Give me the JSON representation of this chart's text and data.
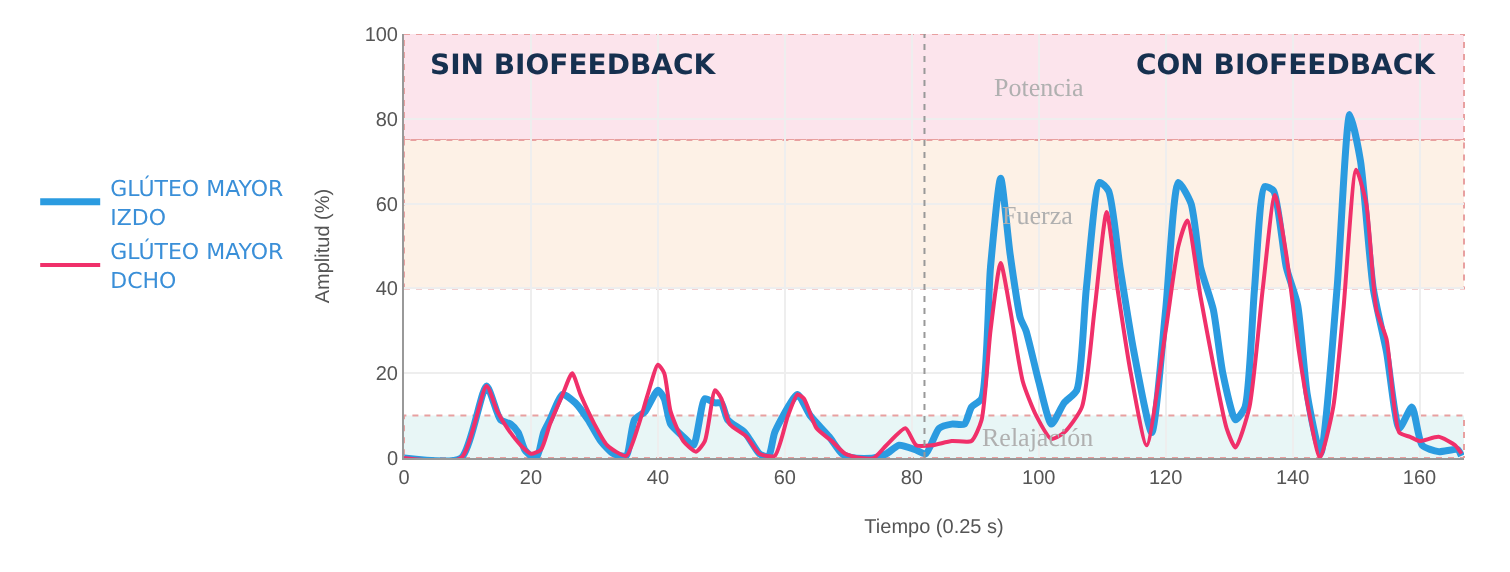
{
  "chart_data": {
    "type": "line",
    "xlabel": "Tiempo (0.25 s)",
    "ylabel": "Amplitud (%)",
    "annotations": [
      "SIN BIOFEEDBACK",
      "CON BIOFEEDBACK"
    ],
    "xlim": [
      0,
      167
    ],
    "xticks": [
      0,
      20,
      40,
      60,
      80,
      100,
      120,
      140,
      160
    ],
    "ylim": [
      0,
      100
    ],
    "yticks": [
      0,
      20,
      40,
      60,
      80,
      100
    ],
    "grid": true,
    "legend": "left",
    "marker": "none",
    "line_style": "solid",
    "bands": [
      {
        "axis": "y",
        "from": 75,
        "to": 100,
        "label": "Potencia",
        "color": "#fce4ec"
      },
      {
        "axis": "y",
        "from": 40,
        "to": 75,
        "label": "Fuerza",
        "color": "#fdf1e6"
      },
      {
        "axis": "y",
        "from": 0,
        "to": 10,
        "label": "Relajación",
        "color": "#e8f6f6"
      }
    ],
    "ref_lines": [
      {
        "axis": "x",
        "value": 82,
        "color": "#999999",
        "line_style": "dotted"
      }
    ],
    "series": [
      {
        "name": "GLÚTEO MAYOR IZDO",
        "color": "#2b9be0",
        "x": [
          0,
          9,
          13,
          15.2,
          16.8,
          18,
          19,
          20,
          21,
          22,
          23,
          25,
          27,
          29,
          31,
          33,
          35,
          36.3,
          38,
          40,
          41,
          42,
          44,
          45.6,
          47.4,
          49,
          50,
          51,
          53.7,
          56,
          57.4,
          58.4,
          60.5,
          62,
          64,
          67,
          69,
          71,
          74,
          76,
          78,
          80.5,
          82.2,
          84.3,
          86.3,
          88.3,
          89.4,
          91,
          92.4,
          94,
          95.5,
          97.1,
          98,
          100,
          102,
          104,
          106,
          107.5,
          109.6,
          111,
          112.8,
          115,
          117.8,
          120,
          122,
          124,
          125.5,
          127.5,
          129,
          131,
          132.5,
          134,
          135.6,
          137,
          139,
          140.8,
          142.3,
          144.4,
          147,
          149,
          150.7,
          152.7,
          154.8,
          156.8,
          158.8,
          160.4,
          163,
          166,
          166.6
        ],
        "values": [
          0,
          0,
          17,
          9,
          8,
          6,
          2,
          0.5,
          0.5,
          6,
          9,
          15,
          13,
          9,
          4,
          1,
          0.5,
          9,
          11,
          16,
          14,
          8,
          5,
          3,
          14,
          13,
          13,
          9,
          6,
          1,
          0.3,
          6,
          12,
          15,
          10,
          5,
          1,
          0,
          0,
          1,
          3,
          2,
          1,
          7,
          8,
          8,
          12,
          14,
          45,
          66,
          48,
          33,
          30,
          18,
          8,
          13,
          16,
          40,
          65,
          63,
          45,
          25,
          6,
          35,
          65,
          60,
          45,
          35,
          20,
          9,
          12,
          40,
          64,
          63,
          45,
          36,
          15,
          1,
          40,
          81,
          70,
          40,
          25,
          7,
          12,
          3,
          1.5,
          2,
          0.5
        ]
      },
      {
        "name": "GLÚTEO MAYOR DCHO",
        "color": "#f0306a",
        "x": [
          0,
          9,
          13,
          14.7,
          16.3,
          18.4,
          20,
          21.6,
          23,
          25,
          26.5,
          27.8,
          30,
          32,
          35,
          37,
          38.4,
          40,
          41,
          42,
          44,
          46,
          47.4,
          49,
          50,
          51.3,
          54,
          56,
          58.4,
          60.5,
          62,
          63,
          65,
          67.4,
          69.5,
          72,
          74,
          76,
          79,
          80.7,
          83.2,
          86.3,
          89.4,
          91,
          92.4,
          94,
          95.5,
          97.5,
          99.6,
          102,
          104,
          106.8,
          108.8,
          110.7,
          112.4,
          114.5,
          117,
          120,
          122,
          123.4,
          125.5,
          127.5,
          129.6,
          131,
          133.2,
          135.3,
          137.2,
          139,
          141,
          142.7,
          144.3,
          146.4,
          148,
          150,
          151.6,
          153.2,
          154.8,
          156.8,
          158.5,
          160,
          163,
          165.6,
          166.6
        ],
        "values": [
          0,
          0,
          17,
          11,
          7,
          3,
          1,
          2,
          8,
          15,
          20,
          15,
          8,
          3,
          0.5,
          8,
          15,
          22,
          20,
          11,
          4,
          1.5,
          4,
          16,
          14,
          8,
          5,
          1,
          0.5,
          10,
          15,
          14,
          7,
          4,
          1,
          0,
          0,
          3,
          7,
          3,
          3,
          4,
          4,
          9,
          30,
          46,
          35,
          18,
          10,
          4.5,
          6,
          12,
          35,
          58,
          40,
          20,
          3,
          30,
          50,
          56,
          38,
          22,
          7,
          2.5,
          12,
          40,
          62,
          48,
          25,
          10,
          0,
          12,
          35,
          68,
          60,
          35,
          28,
          6,
          5,
          4,
          5,
          3,
          1
        ]
      }
    ]
  }
}
